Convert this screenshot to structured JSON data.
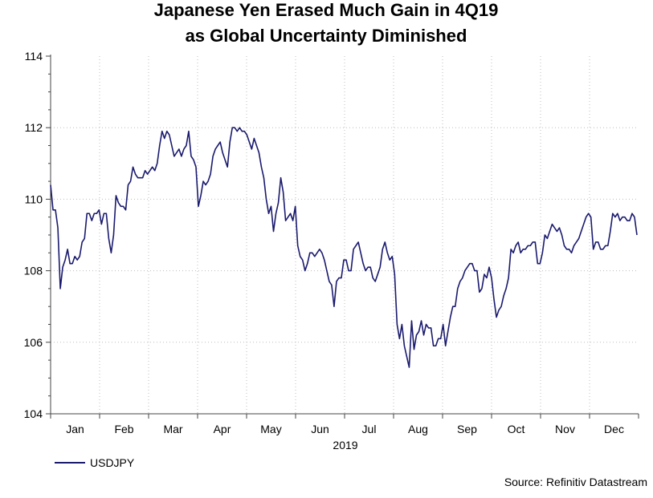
{
  "chart_data": {
    "type": "line",
    "title_line1": "Japanese Yen Erased Much Gain in 4Q19",
    "title_line2": "as Global Uncertainty Diminished",
    "ylim": [
      104,
      114
    ],
    "yticks": [
      "104",
      "106",
      "108",
      "110",
      "112",
      "114"
    ],
    "year_label": "2019",
    "months": [
      "Jan",
      "Feb",
      "Mar",
      "Apr",
      "May",
      "Jun",
      "Jul",
      "Aug",
      "Sep",
      "Oct",
      "Nov",
      "Dec"
    ],
    "source": "Source: Refinitiv Datastream",
    "grid": true,
    "series": [
      {
        "name": "USDJPY",
        "color": "#1a1a6e",
        "x_range": [
          0,
          1
        ],
        "values": [
          110.4,
          109.7,
          109.7,
          109.2,
          107.5,
          108.1,
          108.3,
          108.6,
          108.2,
          108.2,
          108.4,
          108.3,
          108.4,
          108.8,
          108.9,
          109.6,
          109.6,
          109.4,
          109.6,
          109.6,
          109.7,
          109.3,
          109.6,
          109.6,
          108.9,
          108.5,
          109.0,
          110.1,
          109.9,
          109.8,
          109.8,
          109.7,
          110.4,
          110.5,
          110.9,
          110.7,
          110.6,
          110.6,
          110.6,
          110.8,
          110.7,
          110.8,
          110.9,
          110.8,
          111.0,
          111.5,
          111.9,
          111.7,
          111.9,
          111.8,
          111.5,
          111.2,
          111.3,
          111.4,
          111.2,
          111.4,
          111.5,
          111.9,
          111.2,
          111.1,
          110.9,
          109.8,
          110.1,
          110.5,
          110.4,
          110.5,
          110.7,
          111.2,
          111.4,
          111.5,
          111.6,
          111.3,
          111.1,
          110.9,
          111.6,
          112.0,
          112.0,
          111.9,
          112.0,
          111.9,
          111.9,
          111.8,
          111.6,
          111.4,
          111.7,
          111.5,
          111.3,
          110.9,
          110.6,
          110.0,
          109.6,
          109.8,
          109.1,
          109.6,
          109.9,
          110.6,
          110.2,
          109.4,
          109.5,
          109.6,
          109.4,
          109.8,
          108.7,
          108.4,
          108.3,
          108.0,
          108.2,
          108.5,
          108.5,
          108.4,
          108.5,
          108.6,
          108.5,
          108.3,
          108.0,
          107.7,
          107.6,
          107.0,
          107.7,
          107.8,
          107.8,
          108.3,
          108.3,
          108.0,
          108.0,
          108.6,
          108.7,
          108.8,
          108.5,
          108.2,
          108.0,
          108.1,
          108.1,
          107.8,
          107.7,
          107.9,
          108.1,
          108.6,
          108.8,
          108.5,
          108.3,
          108.4,
          107.9,
          106.5,
          106.1,
          106.5,
          105.9,
          105.6,
          105.3,
          106.6,
          105.8,
          106.2,
          106.3,
          106.6,
          106.2,
          106.5,
          106.4,
          106.4,
          105.9,
          105.9,
          106.1,
          106.1,
          106.5,
          105.9,
          106.3,
          106.7,
          107.0,
          107.0,
          107.5,
          107.7,
          107.8,
          108.0,
          108.1,
          108.2,
          108.2,
          108.0,
          108.0,
          107.4,
          107.5,
          107.9,
          107.8,
          108.1,
          107.8,
          107.2,
          106.7,
          106.9,
          107.0,
          107.3,
          107.5,
          107.8,
          108.6,
          108.5,
          108.7,
          108.8,
          108.5,
          108.6,
          108.6,
          108.7,
          108.7,
          108.8,
          108.8,
          108.2,
          108.2,
          108.5,
          109.0,
          108.9,
          109.1,
          109.3,
          109.2,
          109.1,
          109.2,
          109.0,
          108.7,
          108.6,
          108.6,
          108.5,
          108.7,
          108.8,
          108.9,
          109.1,
          109.3,
          109.5,
          109.6,
          109.5,
          108.6,
          108.8,
          108.8,
          108.6,
          108.6,
          108.7,
          108.7,
          109.1,
          109.6,
          109.5,
          109.6,
          109.4,
          109.5,
          109.5,
          109.4,
          109.4,
          109.6,
          109.5,
          109.0
        ]
      }
    ]
  },
  "legend": {
    "label": "USDJPY"
  }
}
